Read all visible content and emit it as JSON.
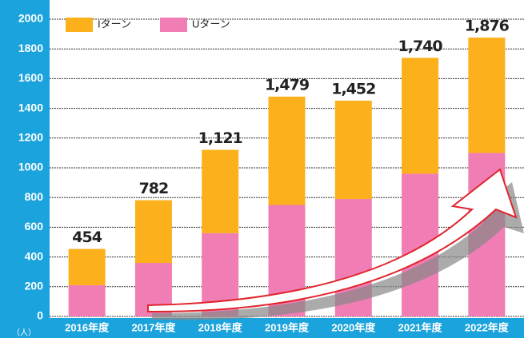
{
  "chart_data": {
    "type": "bar",
    "stacked": true,
    "categories": [
      "2016年度",
      "2017年度",
      "2018年度",
      "2019年度",
      "2020年度",
      "2021年度",
      "2022年度"
    ],
    "series": [
      {
        "name": "Iターン",
        "color": "#fbb01c",
        "values": [
          244,
          422,
          561,
          729,
          662,
          780,
          776
        ]
      },
      {
        "name": "Uターン",
        "color": "#f07db3",
        "values": [
          210,
          360,
          560,
          750,
          790,
          960,
          1100
        ]
      }
    ],
    "totals": [
      454,
      782,
      1121,
      1479,
      1452,
      1740,
      1876
    ],
    "total_labels": [
      "454",
      "782",
      "1,121",
      "1,479",
      "1,452",
      "1,740",
      "1,876"
    ],
    "y_unit": "（人）",
    "ylim": [
      0,
      2000
    ],
    "yticks": [
      0,
      200,
      400,
      600,
      800,
      1000,
      1200,
      1400,
      1600,
      1800,
      2000
    ],
    "grid": true
  }
}
